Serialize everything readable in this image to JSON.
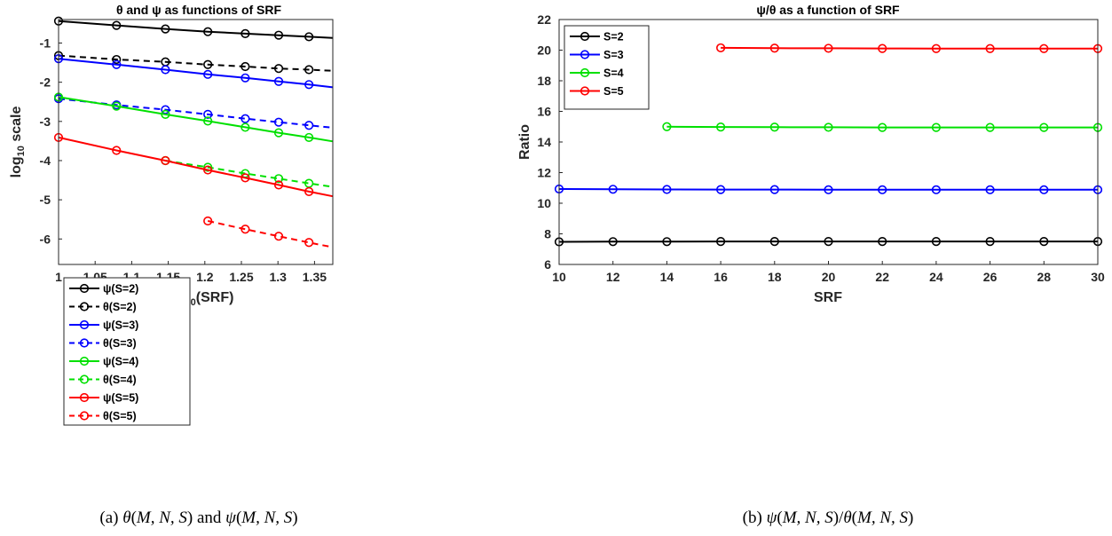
{
  "chart_data": [
    {
      "type": "line",
      "title": "θ and ψ as functions of SRF",
      "xlabel": "log10(SRF)",
      "ylabel": "log10 scale",
      "xlim": [
        1,
        1.375
      ],
      "ylim": [
        -6.65,
        -0.4
      ],
      "xticks": [
        1,
        1.05,
        1.1,
        1.15,
        1.2,
        1.25,
        1.3,
        1.35
      ],
      "xtick_labels": [
        "1",
        "1.05",
        "1.1",
        "1.15",
        "1.2",
        "1.25",
        "1.3",
        "1.35"
      ],
      "yticks": [
        -1,
        -2,
        -3,
        -4,
        -5,
        -6
      ],
      "ytick_labels": [
        "-1",
        "-2",
        "-3",
        "-4",
        "-5",
        "-6"
      ],
      "legend_position": "bottom-left",
      "caption": "(a) θ(M, N, S) and ψ(M, N, S)",
      "series": [
        {
          "name": "ψ(S=2)",
          "color": "#000000",
          "dashed": false,
          "x": [
            1.0,
            1.0792,
            1.1461,
            1.2041,
            1.2553,
            1.301,
            1.3424,
            1.375
          ],
          "y": [
            -0.44,
            -0.55,
            -0.64,
            -0.71,
            -0.76,
            -0.8,
            -0.84,
            -0.87
          ],
          "markers": 7
        },
        {
          "name": "θ(S=2)",
          "color": "#000000",
          "dashed": true,
          "x": [
            1.0,
            1.0792,
            1.1461,
            1.2041,
            1.2553,
            1.301,
            1.3424,
            1.375
          ],
          "y": [
            -1.32,
            -1.42,
            -1.48,
            -1.55,
            -1.6,
            -1.65,
            -1.68,
            -1.71
          ],
          "markers": 7
        },
        {
          "name": "ψ(S=3)",
          "color": "#0000ff",
          "dashed": false,
          "x": [
            1.0,
            1.0792,
            1.1461,
            1.2041,
            1.2553,
            1.301,
            1.3424,
            1.375
          ],
          "y": [
            -1.4,
            -1.55,
            -1.68,
            -1.8,
            -1.89,
            -1.98,
            -2.06,
            -2.13
          ],
          "markers": 7
        },
        {
          "name": "θ(S=3)",
          "color": "#0000ff",
          "dashed": true,
          "x": [
            1.0,
            1.0792,
            1.1461,
            1.2041,
            1.2553,
            1.301,
            1.3424,
            1.375
          ],
          "y": [
            -2.42,
            -2.58,
            -2.7,
            -2.82,
            -2.93,
            -3.02,
            -3.1,
            -3.16
          ],
          "markers": 7
        },
        {
          "name": "ψ(S=4)",
          "color": "#00e000",
          "dashed": false,
          "x": [
            1.0,
            1.0792,
            1.1461,
            1.2041,
            1.2553,
            1.301,
            1.3424,
            1.375
          ],
          "y": [
            -2.38,
            -2.61,
            -2.82,
            -2.99,
            -3.15,
            -3.29,
            -3.41,
            -3.51
          ],
          "markers": 7
        },
        {
          "name": "θ(S=4)",
          "color": "#00e000",
          "dashed": true,
          "x": [
            1.1461,
            1.2041,
            1.2553,
            1.301,
            1.3424,
            1.375
          ],
          "y": [
            -4.0,
            -4.17,
            -4.33,
            -4.46,
            -4.58,
            -4.67
          ],
          "markers": 5
        },
        {
          "name": "ψ(S=5)",
          "color": "#ff0000",
          "dashed": false,
          "x": [
            1.0,
            1.0792,
            1.1461,
            1.2041,
            1.2553,
            1.301,
            1.3424,
            1.375
          ],
          "y": [
            -3.41,
            -3.74,
            -4.0,
            -4.24,
            -4.44,
            -4.62,
            -4.79,
            -4.91
          ],
          "markers": 7
        },
        {
          "name": "θ(S=5)",
          "color": "#ff0000",
          "dashed": true,
          "x": [
            1.2041,
            1.2553,
            1.301,
            1.3424,
            1.375
          ],
          "y": [
            -5.54,
            -5.75,
            -5.93,
            -6.09,
            -6.21
          ],
          "markers": 4
        }
      ]
    },
    {
      "type": "line",
      "title": "ψ/θ as a function of SRF",
      "xlabel": "SRF",
      "ylabel": "Ratio",
      "xlim": [
        10,
        30
      ],
      "ylim": [
        6,
        22
      ],
      "xticks": [
        10,
        12,
        14,
        16,
        18,
        20,
        22,
        24,
        26,
        28,
        30
      ],
      "xtick_labels": [
        "10",
        "12",
        "14",
        "16",
        "18",
        "20",
        "22",
        "24",
        "26",
        "28",
        "30"
      ],
      "yticks": [
        6,
        8,
        10,
        12,
        14,
        16,
        18,
        20,
        22
      ],
      "ytick_labels": [
        "6",
        "8",
        "10",
        "12",
        "14",
        "16",
        "18",
        "20",
        "22"
      ],
      "legend_position": "top-left",
      "caption": "(b) ψ(M, N, S)/θ(M, N, S)",
      "series": [
        {
          "name": "S=2",
          "color": "#000000",
          "dashed": false,
          "x": [
            10,
            12,
            14,
            16,
            18,
            20,
            22,
            24,
            26,
            28,
            30
          ],
          "y": [
            7.48,
            7.49,
            7.49,
            7.5,
            7.5,
            7.5,
            7.5,
            7.5,
            7.5,
            7.5,
            7.5
          ],
          "markers": 11
        },
        {
          "name": "S=3",
          "color": "#0000ff",
          "dashed": false,
          "x": [
            10,
            12,
            14,
            16,
            18,
            20,
            22,
            24,
            26,
            28,
            30
          ],
          "y": [
            10.93,
            10.91,
            10.9,
            10.89,
            10.89,
            10.88,
            10.88,
            10.88,
            10.88,
            10.88,
            10.88
          ],
          "markers": 11
        },
        {
          "name": "S=4",
          "color": "#00e000",
          "dashed": false,
          "x": [
            14,
            16,
            18,
            20,
            22,
            24,
            26,
            28,
            30
          ],
          "y": [
            15.0,
            14.98,
            14.97,
            14.96,
            14.95,
            14.95,
            14.95,
            14.95,
            14.95
          ],
          "markers": 9
        },
        {
          "name": "S=5",
          "color": "#ff0000",
          "dashed": false,
          "x": [
            16,
            18,
            20,
            22,
            24,
            26,
            28,
            30
          ],
          "y": [
            20.15,
            20.13,
            20.12,
            20.11,
            20.1,
            20.1,
            20.1,
            20.1
          ],
          "markers": 8
        }
      ]
    }
  ]
}
